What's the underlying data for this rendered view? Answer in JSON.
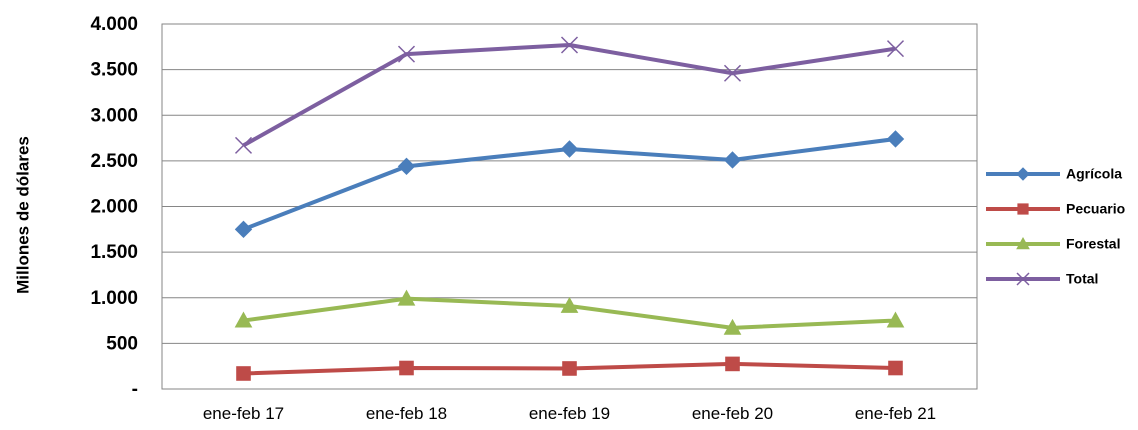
{
  "chart_data": {
    "type": "line",
    "title": "",
    "xlabel": "",
    "ylabel": "Millones de dólares",
    "categories": [
      "ene-feb 17",
      "ene-feb 18",
      "ene-feb 19",
      "ene-feb 20",
      "ene-feb 21"
    ],
    "ylim": [
      0,
      4000
    ],
    "yticks": [
      0,
      500,
      1000,
      1500,
      2000,
      2500,
      3000,
      3500,
      4000
    ],
    "ytick_labels": [
      "-",
      "500",
      "1.000",
      "1.500",
      "2.000",
      "2.500",
      "3.000",
      "3.500",
      "4.000"
    ],
    "grid": true,
    "legend_position": "right",
    "series": [
      {
        "name": "Agrícola",
        "color": "#4a7ebb",
        "marker": "diamond",
        "values": [
          1750,
          2440,
          2630,
          2510,
          2740
        ]
      },
      {
        "name": "Pecuario",
        "color": "#be4b48",
        "marker": "square",
        "values": [
          170,
          230,
          225,
          275,
          230
        ]
      },
      {
        "name": "Forestal",
        "color": "#98b954",
        "marker": "triangle",
        "values": [
          750,
          990,
          910,
          670,
          750
        ]
      },
      {
        "name": "Total",
        "color": "#7d5fa0",
        "marker": "x",
        "values": [
          2670,
          3670,
          3770,
          3460,
          3730
        ]
      }
    ]
  }
}
